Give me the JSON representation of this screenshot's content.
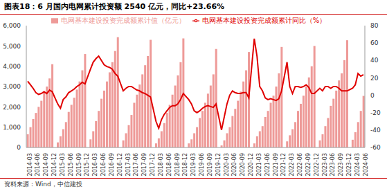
{
  "chart_data": {
    "type": "bar",
    "title": "图表18：6 月国内电网累计投资额 2540 亿元，同比+23.66%",
    "source": "资料来源：Wind，中信建投",
    "categories": [
      "2014-03",
      null,
      null,
      "2014-06",
      null,
      null,
      "2014-09",
      null,
      null,
      "2014-12",
      null,
      null,
      "2015-03",
      null,
      null,
      "2015-06",
      null,
      null,
      "2015-09",
      null,
      null,
      "2015-12",
      null,
      null,
      "2016-03",
      null,
      null,
      "2016-06",
      null,
      null,
      "2016-09",
      null,
      null,
      "2016-12",
      null,
      null,
      "2017-03",
      null,
      null,
      "2017-06",
      null,
      null,
      "2017-09",
      null,
      null,
      "2017-12",
      null,
      null,
      "2018-03",
      null,
      null,
      "2018-06",
      null,
      null,
      "2018-09",
      null,
      null,
      "2018-12",
      null,
      null,
      "2019-03",
      null,
      null,
      "2019-06",
      null,
      null,
      "2019-09",
      null,
      null,
      "2019-12",
      null,
      null,
      "2020-03",
      null,
      null,
      "2020-06",
      null,
      null,
      "2020-09",
      null,
      null,
      "2020-12",
      null,
      null,
      "2021-03",
      null,
      null,
      "2021-06",
      null,
      null,
      "2021-09",
      null,
      null,
      "2021-12",
      null,
      null,
      "2022-03",
      null,
      null,
      "2022-06",
      null,
      null,
      "2022-09",
      null,
      null,
      "2022-12",
      null,
      null,
      "2023-03",
      null,
      null,
      "2023-06",
      null,
      null,
      "2023-09",
      null,
      null,
      "2023-12",
      null,
      null,
      "2024-03",
      null,
      null,
      "2024-06"
    ],
    "series": [
      {
        "name": "电网基本建设投资完成额累计值（亿元）",
        "type": "bar",
        "color": "#ee9a98",
        "values": [
          650,
          1000,
          1400,
          1700,
          2000,
          2300,
          2700,
          3000,
          3400,
          4100,
          null,
          250,
          550,
          900,
          1250,
          1750,
          2100,
          2450,
          2850,
          3250,
          3800,
          4600,
          null,
          400,
          800,
          1300,
          1800,
          2400,
          2800,
          3250,
          3700,
          4200,
          4750,
          5430,
          null,
          350,
          700,
          1100,
          1600,
          2200,
          2600,
          3100,
          3600,
          4050,
          4500,
          5300,
          null,
          200,
          450,
          800,
          1200,
          1700,
          2100,
          2600,
          3050,
          3550,
          4200,
          5370,
          null,
          200,
          400,
          700,
          1000,
          1450,
          1800,
          2200,
          2650,
          3050,
          3600,
          4850,
          null,
          100,
          350,
          700,
          1000,
          1550,
          1900,
          2300,
          2750,
          3250,
          3800,
          4700,
          null,
          200,
          550,
          800,
          1050,
          1500,
          1800,
          2200,
          2550,
          3000,
          3650,
          4950,
          null,
          300,
          600,
          900,
          1250,
          1800,
          2150,
          2550,
          3000,
          3450,
          4000,
          5000,
          null,
          350,
          650,
          1050,
          1450,
          2050,
          2400,
          2800,
          3300,
          3650,
          4300,
          5280,
          null,
          380,
          750,
          1250,
          1800,
          2540
        ]
      },
      {
        "name": "电网基本建设投资完成额累计同比（%）",
        "type": "line",
        "axis": "y2",
        "color": "#e00000",
        "values": [
          16,
          12,
          8,
          3,
          1,
          2,
          4,
          2,
          6,
          4,
          null,
          -10,
          -15,
          -5,
          -2,
          3,
          5,
          7,
          10,
          12,
          15,
          13,
          null,
          30,
          38,
          42,
          45,
          40,
          35,
          33,
          32,
          30,
          25,
          22,
          null,
          5,
          8,
          10,
          10,
          8,
          6,
          5,
          3,
          2,
          0,
          -2,
          null,
          -30,
          -38,
          -28,
          -22,
          -18,
          -14,
          -12,
          -12,
          -10,
          -5,
          2,
          null,
          -5,
          -10,
          -18,
          -20,
          -18,
          -15,
          -13,
          -12,
          -13,
          -14,
          -10,
          null,
          -40,
          -25,
          -10,
          0,
          5,
          3,
          2,
          2,
          3,
          3,
          -3,
          null,
          65,
          45,
          10,
          5,
          -3,
          -5,
          -4,
          -5,
          -6,
          -4,
          5,
          null,
          38,
          10,
          2,
          10,
          10,
          9,
          10,
          12,
          9,
          2,
          2,
          null,
          8,
          5,
          10,
          10,
          8,
          10,
          10,
          8,
          5,
          5,
          5,
          null,
          8,
          12,
          25,
          22,
          23.66
        ]
      }
    ],
    "ylim": [
      0,
      6000
    ],
    "yticks": [
      0,
      {
        "value": 1000,
        "label": "1,000"
      },
      {
        "value": 2000,
        "label": "2,000"
      },
      {
        "value": 3000,
        "label": "3,000"
      },
      {
        "value": 4000,
        "label": "4,000"
      },
      {
        "value": 5000,
        "label": "5,000"
      },
      {
        "value": 6000,
        "label": "6,000"
      }
    ],
    "y2lim": [
      -60,
      80
    ],
    "y2ticks": [
      -60,
      -40,
      -20,
      0,
      20,
      40,
      60,
      80
    ],
    "grid": false,
    "legend": "top"
  }
}
